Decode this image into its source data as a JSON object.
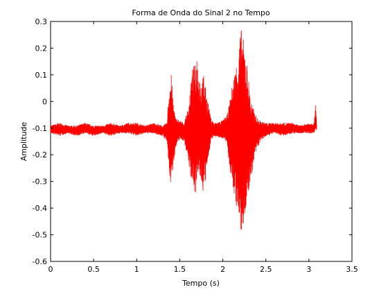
{
  "chart_data": {
    "type": "line",
    "title": "Forma de Onda do Sinal 2 no Tempo",
    "xlabel": "Tempo (s)",
    "ylabel": "Amplitude",
    "xlim": [
      0,
      3.5
    ],
    "ylim": [
      -0.6,
      0.3
    ],
    "xticks": [
      0,
      0.5,
      1,
      1.5,
      2,
      2.5,
      3,
      3.5
    ],
    "xtick_labels": [
      "0",
      "0.5",
      "1",
      "1.5",
      "2",
      "2.5",
      "3",
      "3.5"
    ],
    "yticks": [
      -0.6,
      -0.5,
      -0.4,
      -0.3,
      -0.2,
      -0.1,
      0,
      0.1,
      0.2,
      0.3
    ],
    "ytick_labels": [
      "-0.6",
      "-0.5",
      "-0.4",
      "-0.3",
      "-0.2",
      "-0.1",
      "0",
      "0.1",
      "0.2",
      "0.3"
    ],
    "grid": false,
    "line_color": "#ff0000",
    "series": [
      {
        "description_points": "approximate envelope of the waveform (time, min amplitude, max amplitude)",
        "envelope": [
          [
            0.0,
            -0.12,
            -0.09
          ],
          [
            0.1,
            -0.13,
            -0.08
          ],
          [
            0.2,
            -0.12,
            -0.09
          ],
          [
            0.3,
            -0.13,
            -0.09
          ],
          [
            0.4,
            -0.12,
            -0.08
          ],
          [
            0.5,
            -0.13,
            -0.09
          ],
          [
            0.6,
            -0.12,
            -0.09
          ],
          [
            0.7,
            -0.13,
            -0.08
          ],
          [
            0.8,
            -0.12,
            -0.09
          ],
          [
            0.9,
            -0.12,
            -0.08
          ],
          [
            1.0,
            -0.13,
            -0.08
          ],
          [
            1.1,
            -0.12,
            -0.09
          ],
          [
            1.2,
            -0.12,
            -0.08
          ],
          [
            1.3,
            -0.13,
            -0.09
          ],
          [
            1.35,
            -0.15,
            -0.08
          ],
          [
            1.38,
            -0.28,
            0.07
          ],
          [
            1.4,
            -0.33,
            0.11
          ],
          [
            1.42,
            -0.25,
            0.02
          ],
          [
            1.45,
            -0.18,
            -0.06
          ],
          [
            1.5,
            -0.14,
            -0.07
          ],
          [
            1.55,
            -0.15,
            -0.08
          ],
          [
            1.6,
            -0.22,
            -0.02
          ],
          [
            1.62,
            -0.28,
            0.05
          ],
          [
            1.65,
            -0.3,
            0.13
          ],
          [
            1.68,
            -0.35,
            0.14
          ],
          [
            1.7,
            -0.32,
            0.18
          ],
          [
            1.73,
            -0.28,
            0.1
          ],
          [
            1.76,
            -0.33,
            0.07
          ],
          [
            1.78,
            -0.35,
            0.12
          ],
          [
            1.8,
            -0.3,
            0.05
          ],
          [
            1.83,
            -0.22,
            0.0
          ],
          [
            1.86,
            -0.15,
            -0.06
          ],
          [
            1.9,
            -0.13,
            -0.08
          ],
          [
            2.0,
            -0.14,
            -0.07
          ],
          [
            2.05,
            -0.16,
            -0.05
          ],
          [
            2.08,
            -0.25,
            0.0
          ],
          [
            2.1,
            -0.3,
            0.05
          ],
          [
            2.13,
            -0.35,
            0.1
          ],
          [
            2.16,
            -0.4,
            0.15
          ],
          [
            2.19,
            -0.45,
            0.22
          ],
          [
            2.21,
            -0.51,
            0.28
          ],
          [
            2.23,
            -0.5,
            0.25
          ],
          [
            2.26,
            -0.42,
            0.2
          ],
          [
            2.29,
            -0.37,
            0.12
          ],
          [
            2.32,
            -0.3,
            0.02
          ],
          [
            2.35,
            -0.25,
            -0.02
          ],
          [
            2.38,
            -0.2,
            -0.05
          ],
          [
            2.42,
            -0.16,
            -0.07
          ],
          [
            2.5,
            -0.13,
            -0.08
          ],
          [
            2.6,
            -0.12,
            -0.08
          ],
          [
            2.7,
            -0.13,
            -0.08
          ],
          [
            2.8,
            -0.12,
            -0.08
          ],
          [
            2.9,
            -0.12,
            -0.09
          ],
          [
            3.0,
            -0.12,
            -0.08
          ],
          [
            3.06,
            -0.12,
            -0.08
          ],
          [
            3.08,
            -0.11,
            0.0
          ],
          [
            3.09,
            -0.11,
            -0.09
          ]
        ]
      }
    ]
  }
}
